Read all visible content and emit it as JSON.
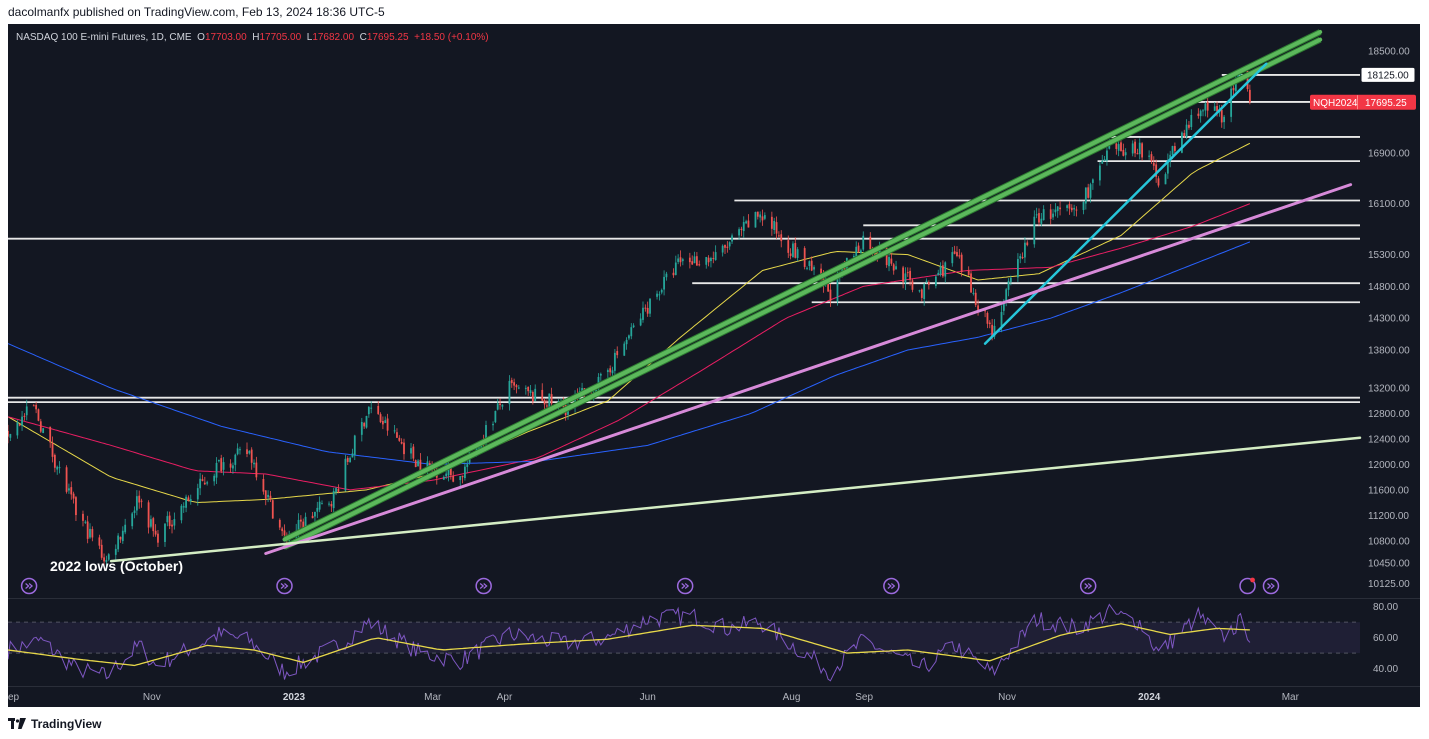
{
  "publish_line": "dacolmanfx published on TradingView.com, Feb 13, 2024 18:36 UTC-5",
  "brand": "TradingView",
  "legend": {
    "symbol": "NASDAQ 100 E-mini Futures, 1D, CME",
    "open_label": "O",
    "open": "17703.00",
    "high_label": "H",
    "high": "17705.00",
    "low_label": "L",
    "low": "17682.00",
    "close_label": "C",
    "close": "17695.25",
    "change": "+18.50 (+0.10%)"
  },
  "price_tag": {
    "ticker": "NQH2024",
    "price": "17695.25"
  },
  "level_tag": "18125.00",
  "annotation": "2022 lows (October)",
  "colors": {
    "background": "#131722",
    "up": "#26a69a",
    "down": "#ef5350",
    "ma_yellow": "#e7d84a",
    "ma_red": "#e91e63",
    "ma_blue": "#2962ff",
    "channel_green": "#5cb85c",
    "trend_cyan": "#26c6da",
    "trend_pink": "#d78ad9",
    "trend_light": "#d4edc4",
    "rsi": "#7e57c2",
    "rsi_ma": "#e7d84a",
    "price_tag": "#f23645"
  },
  "chart_data": {
    "type": "candlestick",
    "x_range": [
      "2022-09-01",
      "2024-03-31"
    ],
    "ylim": [
      9900,
      18800
    ],
    "y_ticks": [
      "18500.00",
      "16900.00",
      "16100.00",
      "15300.00",
      "14800.00",
      "14300.00",
      "13800.00",
      "13200.00",
      "12800.00",
      "12400.00",
      "12000.00",
      "11600.00",
      "11200.00",
      "10800.00",
      "10450.00",
      "10125.00"
    ],
    "x_ticks": [
      {
        "label": "ep",
        "date": "2022-09-01"
      },
      {
        "label": "Nov",
        "date": "2022-11-01"
      },
      {
        "label": "2023",
        "date": "2023-01-01"
      },
      {
        "label": "Mar",
        "date": "2023-03-01"
      },
      {
        "label": "Apr",
        "date": "2023-04-01"
      },
      {
        "label": "Jun",
        "date": "2023-06-01"
      },
      {
        "label": "Aug",
        "date": "2023-08-01"
      },
      {
        "label": "Sep",
        "date": "2023-09-01"
      },
      {
        "label": "Nov",
        "date": "2023-11-01"
      },
      {
        "label": "2024",
        "date": "2024-01-01"
      },
      {
        "label": "Mar",
        "date": "2024-03-01"
      }
    ],
    "price_path": [
      [
        "2022-09-01",
        12500
      ],
      [
        "2022-09-12",
        12900
      ],
      [
        "2022-09-30",
        11250
      ],
      [
        "2022-10-13",
        10480
      ],
      [
        "2022-10-27",
        11500
      ],
      [
        "2022-11-03",
        10850
      ],
      [
        "2022-11-30",
        12000
      ],
      [
        "2022-12-13",
        12200
      ],
      [
        "2022-12-28",
        10820
      ],
      [
        "2023-01-18",
        11500
      ],
      [
        "2023-02-02",
        12900
      ],
      [
        "2023-02-24",
        12000
      ],
      [
        "2023-03-13",
        11800
      ],
      [
        "2023-04-03",
        13200
      ],
      [
        "2023-04-27",
        12900
      ],
      [
        "2023-05-12",
        13300
      ],
      [
        "2023-06-01",
        14500
      ],
      [
        "2023-06-15",
        15200
      ],
      [
        "2023-06-30",
        15250
      ],
      [
        "2023-07-19",
        15950
      ],
      [
        "2023-08-18",
        14700
      ],
      [
        "2023-09-01",
        15550
      ],
      [
        "2023-09-26",
        14700
      ],
      [
        "2023-10-10",
        15300
      ],
      [
        "2023-10-26",
        14100
      ],
      [
        "2023-11-14",
        15900
      ],
      [
        "2023-12-01",
        16000
      ],
      [
        "2023-12-15",
        16900
      ],
      [
        "2023-12-28",
        17000
      ],
      [
        "2024-01-05",
        16500
      ],
      [
        "2024-01-22",
        17600
      ],
      [
        "2024-02-01",
        17500
      ],
      [
        "2024-02-09",
        18100
      ],
      [
        "2024-02-13",
        17695.25
      ]
    ],
    "moving_averages": [
      {
        "color": "#e7d84a",
        "points": [
          [
            "2022-09-01",
            12750
          ],
          [
            "2022-10-15",
            11800
          ],
          [
            "2022-11-20",
            11400
          ],
          [
            "2022-12-20",
            11450
          ],
          [
            "2023-02-01",
            11600
          ],
          [
            "2023-03-01",
            11850
          ],
          [
            "2023-04-10",
            12500
          ],
          [
            "2023-05-15",
            13000
          ],
          [
            "2023-06-15",
            14000
          ],
          [
            "2023-07-20",
            15050
          ],
          [
            "2023-08-20",
            15350
          ],
          [
            "2023-09-20",
            15300
          ],
          [
            "2023-10-20",
            14900
          ],
          [
            "2023-11-15",
            15000
          ],
          [
            "2023-12-20",
            15600
          ],
          [
            "2024-01-20",
            16600
          ],
          [
            "2024-02-13",
            17050
          ]
        ]
      },
      {
        "color": "#e91e63",
        "points": [
          [
            "2022-09-01",
            12750
          ],
          [
            "2022-10-15",
            12300
          ],
          [
            "2022-11-20",
            11900
          ],
          [
            "2022-12-20",
            11850
          ],
          [
            "2023-01-25",
            11600
          ],
          [
            "2023-03-01",
            11750
          ],
          [
            "2023-04-15",
            12100
          ],
          [
            "2023-05-20",
            12700
          ],
          [
            "2023-06-25",
            13500
          ],
          [
            "2023-07-30",
            14300
          ],
          [
            "2023-09-01",
            14800
          ],
          [
            "2023-10-15",
            15050
          ],
          [
            "2023-11-20",
            15100
          ],
          [
            "2023-12-20",
            15400
          ],
          [
            "2024-01-20",
            15750
          ],
          [
            "2024-02-13",
            16100
          ]
        ]
      },
      {
        "color": "#2962ff",
        "points": [
          [
            "2022-09-01",
            13900
          ],
          [
            "2022-10-15",
            13200
          ],
          [
            "2022-12-01",
            12600
          ],
          [
            "2023-01-15",
            12200
          ],
          [
            "2023-03-01",
            12000
          ],
          [
            "2023-04-15",
            12050
          ],
          [
            "2023-06-01",
            12300
          ],
          [
            "2023-07-15",
            12800
          ],
          [
            "2023-08-20",
            13400
          ],
          [
            "2023-09-20",
            13800
          ],
          [
            "2023-10-20",
            14000
          ],
          [
            "2023-11-20",
            14300
          ],
          [
            "2023-12-20",
            14700
          ],
          [
            "2024-01-20",
            15150
          ],
          [
            "2024-02-13",
            15500
          ]
        ]
      }
    ],
    "horizontal_levels": [
      {
        "value": 18125,
        "start": "2024-02-01",
        "end": "2024-03-31"
      },
      {
        "value": 17700,
        "start": "2024-01-18",
        "end": "2024-03-31"
      },
      {
        "value": 17150,
        "start": "2023-12-15",
        "end": "2024-03-31"
      },
      {
        "value": 16770,
        "start": "2023-12-10",
        "end": "2024-03-31"
      },
      {
        "value": 16150,
        "start": "2023-07-08",
        "end": "2024-03-31"
      },
      {
        "value": 15760,
        "start": "2023-09-01",
        "end": "2024-03-31"
      },
      {
        "value": 15550,
        "start": "2022-09-01",
        "end": "2024-03-31"
      },
      {
        "value": 14850,
        "start": "2023-06-20",
        "end": "2024-03-31"
      },
      {
        "value": 14550,
        "start": "2023-08-10",
        "end": "2024-03-31"
      },
      {
        "value": 13050,
        "start": "2022-09-01",
        "end": "2024-03-31"
      },
      {
        "value": 12980,
        "start": "2022-09-01",
        "end": "2024-03-31"
      }
    ],
    "trendlines": [
      {
        "color": "#5cb85c",
        "from": [
          "2022-12-28",
          10820
        ],
        "to": [
          "2024-03-14",
          18800
        ],
        "width": 4
      },
      {
        "color": "#5cb85c",
        "from": [
          "2022-12-28",
          10700
        ],
        "to": [
          "2024-03-14",
          18680
        ],
        "width": 4
      },
      {
        "color": "#26c6da",
        "from": [
          "2023-10-23",
          13900
        ],
        "to": [
          "2024-02-20",
          18300
        ],
        "width": 2.5
      },
      {
        "color": "#d78ad9",
        "from": [
          "2022-12-20",
          10600
        ],
        "to": [
          "2024-03-27",
          16400
        ],
        "width": 3
      },
      {
        "color": "#d4edc4",
        "from": [
          "2022-10-15",
          10480
        ],
        "to": [
          "2024-03-31",
          12420
        ],
        "width": 2.5
      }
    ],
    "rsi": {
      "ylim": [
        30,
        85
      ],
      "y_ticks": [
        "80.00",
        "60.00",
        "40.00"
      ],
      "band": [
        50,
        70
      ],
      "rsi_path": [
        [
          "2022-09-01",
          52
        ],
        [
          "2022-09-15",
          58
        ],
        [
          "2022-09-30",
          40
        ],
        [
          "2022-10-13",
          35
        ],
        [
          "2022-10-27",
          55
        ],
        [
          "2022-11-03",
          42
        ],
        [
          "2022-11-30",
          62
        ],
        [
          "2022-12-13",
          58
        ],
        [
          "2022-12-28",
          38
        ],
        [
          "2023-01-20",
          55
        ],
        [
          "2023-02-02",
          70
        ],
        [
          "2023-02-24",
          50
        ],
        [
          "2023-03-13",
          45
        ],
        [
          "2023-04-03",
          62
        ],
        [
          "2023-04-27",
          56
        ],
        [
          "2023-05-15",
          60
        ],
        [
          "2023-06-01",
          72
        ],
        [
          "2023-06-20",
          74
        ],
        [
          "2023-07-05",
          66
        ],
        [
          "2023-07-19",
          70
        ],
        [
          "2023-08-18",
          38
        ],
        [
          "2023-09-01",
          58
        ],
        [
          "2023-09-26",
          40
        ],
        [
          "2023-10-10",
          55
        ],
        [
          "2023-10-26",
          37
        ],
        [
          "2023-11-14",
          72
        ],
        [
          "2023-12-01",
          66
        ],
        [
          "2023-12-15",
          76
        ],
        [
          "2023-12-28",
          70
        ],
        [
          "2024-01-05",
          50
        ],
        [
          "2024-01-22",
          74
        ],
        [
          "2024-02-01",
          60
        ],
        [
          "2024-02-09",
          70
        ],
        [
          "2024-02-13",
          62
        ]
      ],
      "ma_path": [
        [
          "2022-09-01",
          52
        ],
        [
          "2022-10-01",
          46
        ],
        [
          "2022-10-25",
          42
        ],
        [
          "2022-11-25",
          55
        ],
        [
          "2022-12-15",
          52
        ],
        [
          "2023-01-05",
          44
        ],
        [
          "2023-02-05",
          60
        ],
        [
          "2023-03-05",
          52
        ],
        [
          "2023-04-10",
          56
        ],
        [
          "2023-05-15",
          59
        ],
        [
          "2023-06-20",
          68
        ],
        [
          "2023-07-20",
          66
        ],
        [
          "2023-08-25",
          50
        ],
        [
          "2023-09-20",
          52
        ],
        [
          "2023-10-25",
          45
        ],
        [
          "2023-11-25",
          62
        ],
        [
          "2023-12-20",
          69
        ],
        [
          "2024-01-10",
          62
        ],
        [
          "2024-01-30",
          66
        ],
        [
          "2024-02-13",
          65
        ]
      ]
    }
  }
}
